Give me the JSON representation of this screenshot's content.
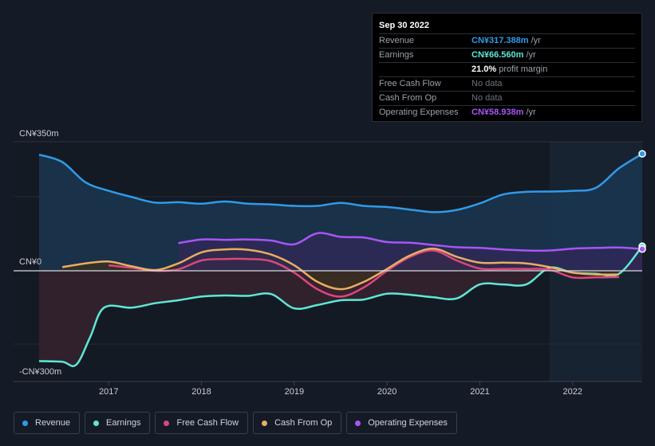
{
  "tooltip": {
    "date": "Sep 30 2022",
    "rows": [
      {
        "label": "Revenue",
        "value": "CN¥317.388m",
        "unit": "/yr",
        "color": "#2f9be8"
      },
      {
        "label": "Earnings",
        "value": "CN¥66.560m",
        "unit": "/yr",
        "color": "#5ee8d6"
      },
      {
        "label": "",
        "value": "21.0%",
        "unit": "profit margin",
        "color": "#ffffff"
      },
      {
        "label": "Free Cash Flow",
        "nodata": "No data"
      },
      {
        "label": "Cash From Op",
        "nodata": "No data"
      },
      {
        "label": "Operating Expenses",
        "value": "CN¥58.938m",
        "unit": "/yr",
        "color": "#a855f7"
      }
    ]
  },
  "legend": [
    {
      "label": "Revenue",
      "color": "#2f9be8"
    },
    {
      "label": "Earnings",
      "color": "#5ee8d6"
    },
    {
      "label": "Free Cash Flow",
      "color": "#d9487c"
    },
    {
      "label": "Cash From Op",
      "color": "#e8ae63"
    },
    {
      "label": "Operating Expenses",
      "color": "#a855f7"
    }
  ],
  "chart_data": {
    "type": "line",
    "ylabel_top": "CN¥350m",
    "ylabel_zero": "CN¥0",
    "ylabel_bottom": "-CN¥300m",
    "ylim": [
      -300,
      350
    ],
    "xlim": [
      2016.25,
      2022.75
    ],
    "forecast_start": 2021.75,
    "x_ticks": [
      {
        "value": 2017,
        "label": "2017"
      },
      {
        "value": 2018,
        "label": "2018"
      },
      {
        "value": 2019,
        "label": "2019"
      },
      {
        "value": 2020,
        "label": "2020"
      },
      {
        "value": 2021,
        "label": "2021"
      },
      {
        "value": 2022,
        "label": "2022"
      }
    ],
    "series": [
      {
        "name": "Revenue",
        "color": "#2f9be8",
        "fill": "#1b3a55",
        "points": [
          [
            2016.25,
            315
          ],
          [
            2016.5,
            295
          ],
          [
            2016.75,
            240
          ],
          [
            2017,
            217
          ],
          [
            2017.25,
            200
          ],
          [
            2017.5,
            185
          ],
          [
            2017.75,
            186
          ],
          [
            2018,
            182
          ],
          [
            2018.25,
            188
          ],
          [
            2018.5,
            182
          ],
          [
            2018.75,
            180
          ],
          [
            2019,
            176
          ],
          [
            2019.25,
            176
          ],
          [
            2019.5,
            184
          ],
          [
            2019.75,
            176
          ],
          [
            2020,
            173
          ],
          [
            2020.25,
            166
          ],
          [
            2020.5,
            159
          ],
          [
            2020.75,
            165
          ],
          [
            2021,
            183
          ],
          [
            2021.25,
            207
          ],
          [
            2021.5,
            214
          ],
          [
            2021.75,
            215
          ],
          [
            2022,
            217
          ],
          [
            2022.25,
            225
          ],
          [
            2022.5,
            278
          ],
          [
            2022.75,
            317.4
          ]
        ]
      },
      {
        "name": "Earnings",
        "color": "#5ee8d6",
        "fill": "#3a2430",
        "points": [
          [
            2016.25,
            -245
          ],
          [
            2016.5,
            -247
          ],
          [
            2016.65,
            -255
          ],
          [
            2016.8,
            -180
          ],
          [
            2016.95,
            -100
          ],
          [
            2017.25,
            -100
          ],
          [
            2017.5,
            -88
          ],
          [
            2017.75,
            -80
          ],
          [
            2018,
            -70
          ],
          [
            2018.25,
            -67
          ],
          [
            2018.5,
            -68
          ],
          [
            2018.75,
            -63
          ],
          [
            2019,
            -102
          ],
          [
            2019.25,
            -93
          ],
          [
            2019.5,
            -80
          ],
          [
            2019.75,
            -78
          ],
          [
            2020,
            -62
          ],
          [
            2020.25,
            -65
          ],
          [
            2020.5,
            -72
          ],
          [
            2020.75,
            -75
          ],
          [
            2021,
            -37
          ],
          [
            2021.25,
            -37
          ],
          [
            2021.5,
            -37
          ],
          [
            2021.75,
            8
          ],
          [
            2022,
            -5
          ],
          [
            2022.25,
            -8
          ],
          [
            2022.5,
            -8
          ],
          [
            2022.75,
            66.6
          ]
        ]
      },
      {
        "name": "Free Cash Flow",
        "color": "#d9487c",
        "fill": "#3a2030",
        "points": [
          [
            2017,
            15
          ],
          [
            2017.25,
            8
          ],
          [
            2017.5,
            0
          ],
          [
            2017.75,
            4
          ],
          [
            2018,
            28
          ],
          [
            2018.25,
            32
          ],
          [
            2018.5,
            32
          ],
          [
            2018.75,
            26
          ],
          [
            2019,
            -5
          ],
          [
            2019.25,
            -50
          ],
          [
            2019.5,
            -70
          ],
          [
            2019.75,
            -45
          ],
          [
            2020,
            0
          ],
          [
            2020.25,
            38
          ],
          [
            2020.5,
            55
          ],
          [
            2020.75,
            28
          ],
          [
            2021,
            6
          ],
          [
            2021.25,
            5
          ],
          [
            2021.5,
            5
          ],
          [
            2021.75,
            3
          ],
          [
            2022,
            -18
          ],
          [
            2022.25,
            -18
          ],
          [
            2022.5,
            -17
          ]
        ]
      },
      {
        "name": "Cash From Op",
        "color": "#e8ae63",
        "fill": "#3a3020",
        "points": [
          [
            2016.5,
            10
          ],
          [
            2016.75,
            20
          ],
          [
            2017,
            25
          ],
          [
            2017.25,
            12
          ],
          [
            2017.5,
            2
          ],
          [
            2017.75,
            20
          ],
          [
            2018,
            50
          ],
          [
            2018.25,
            58
          ],
          [
            2018.5,
            57
          ],
          [
            2018.75,
            44
          ],
          [
            2019,
            15
          ],
          [
            2019.25,
            -30
          ],
          [
            2019.5,
            -50
          ],
          [
            2019.75,
            -30
          ],
          [
            2020,
            5
          ],
          [
            2020.25,
            42
          ],
          [
            2020.5,
            60
          ],
          [
            2020.75,
            38
          ],
          [
            2021,
            22
          ],
          [
            2021.25,
            22
          ],
          [
            2021.5,
            20
          ],
          [
            2021.75,
            10
          ],
          [
            2022,
            -5
          ],
          [
            2022.25,
            -10
          ],
          [
            2022.5,
            -10
          ]
        ]
      },
      {
        "name": "Operating Expenses",
        "color": "#a855f7",
        "fill": "#32285a",
        "points": [
          [
            2017.75,
            75
          ],
          [
            2018,
            85
          ],
          [
            2018.25,
            84
          ],
          [
            2018.5,
            85
          ],
          [
            2018.75,
            82
          ],
          [
            2019,
            72
          ],
          [
            2019.25,
            102
          ],
          [
            2019.5,
            92
          ],
          [
            2019.75,
            90
          ],
          [
            2020,
            78
          ],
          [
            2020.25,
            76
          ],
          [
            2020.5,
            70
          ],
          [
            2020.75,
            64
          ],
          [
            2021,
            62
          ],
          [
            2021.25,
            58
          ],
          [
            2021.5,
            55
          ],
          [
            2021.75,
            55
          ],
          [
            2022,
            60
          ],
          [
            2022.25,
            62
          ],
          [
            2022.5,
            63
          ],
          [
            2022.75,
            58.9
          ]
        ]
      }
    ]
  }
}
